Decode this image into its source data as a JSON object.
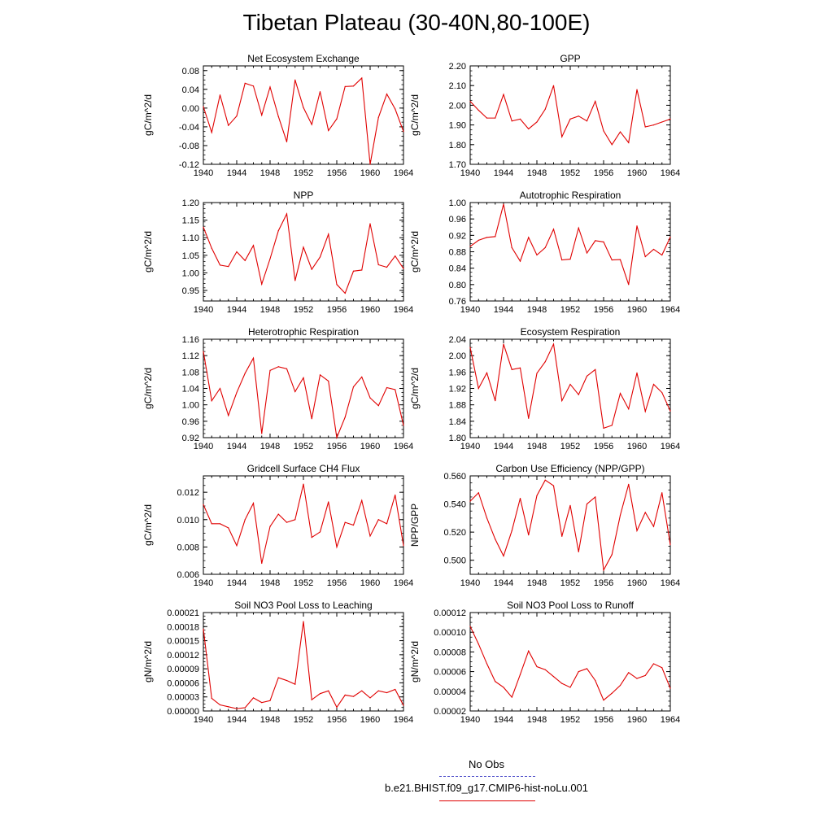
{
  "title": "Tibetan Plateau (30-40N,80-100E)",
  "legend": {
    "obs_label": "No Obs",
    "obs_color": "#5555cc",
    "model_label": "b.e21.BHIST.f09_g17.CMIP6-hist-noLu.001",
    "model_color": "#e00000"
  },
  "chart_data": [
    {
      "type": "line",
      "title": "Net Ecosystem Exchange",
      "ylabel": "gC/m^2/d",
      "xlim": [
        1940,
        1964
      ],
      "xticks": [
        "1940",
        "1944",
        "1948",
        "1952",
        "1956",
        "1960",
        "1964"
      ],
      "ylim": [
        -0.12,
        0.09
      ],
      "yticks": [
        "-0.12",
        "-0.08",
        "-0.04",
        "0.00",
        "0.04",
        "0.08"
      ],
      "series": [
        {
          "x": [
            1940,
            1941,
            1942,
            1943,
            1944,
            1945,
            1946,
            1947,
            1948,
            1949,
            1950,
            1951,
            1952,
            1953,
            1954,
            1955,
            1956,
            1957,
            1958,
            1959,
            1960,
            1961,
            1962,
            1963,
            1964
          ],
          "values": [
            0.003,
            -0.052,
            0.028,
            -0.037,
            -0.017,
            0.053,
            0.047,
            -0.015,
            0.045,
            -0.018,
            -0.072,
            0.06,
            0.001,
            -0.035,
            0.035,
            -0.048,
            -0.023,
            0.046,
            0.047,
            0.064,
            -0.12,
            -0.02,
            0.03,
            -0.002,
            -0.05
          ]
        }
      ]
    },
    {
      "type": "line",
      "title": "GPP",
      "ylabel": "gC/m^2/d",
      "xlim": [
        1940,
        1964
      ],
      "xticks": [
        "1940",
        "1944",
        "1948",
        "1952",
        "1956",
        "1960",
        "1964"
      ],
      "ylim": [
        1.7,
        2.2
      ],
      "yticks": [
        "1.70",
        "1.80",
        "1.90",
        "2.00",
        "2.10",
        "2.20"
      ],
      "series": [
        {
          "x": [
            1940,
            1941,
            1942,
            1943,
            1944,
            1945,
            1946,
            1947,
            1948,
            1949,
            1950,
            1951,
            1952,
            1953,
            1954,
            1955,
            1956,
            1957,
            1958,
            1959,
            1960,
            1961,
            1962,
            1963,
            1964
          ],
          "values": [
            2.02,
            1.975,
            1.935,
            1.935,
            2.055,
            1.92,
            1.93,
            1.88,
            1.915,
            1.98,
            2.1,
            1.84,
            1.93,
            1.945,
            1.92,
            2.02,
            1.87,
            1.8,
            1.865,
            1.81,
            2.08,
            1.89,
            1.9,
            1.915,
            1.93
          ]
        }
      ]
    },
    {
      "type": "line",
      "title": "NPP",
      "ylabel": "gC/m^2/d",
      "xlim": [
        1940,
        1964
      ],
      "xticks": [
        "1940",
        "1944",
        "1948",
        "1952",
        "1956",
        "1960",
        "1964"
      ],
      "ylim": [
        0.92,
        1.2
      ],
      "yticks": [
        "0.95",
        "1.00",
        "1.05",
        "1.10",
        "1.15",
        "1.20"
      ],
      "series": [
        {
          "x": [
            1940,
            1941,
            1942,
            1943,
            1944,
            1945,
            1946,
            1947,
            1948,
            1949,
            1950,
            1951,
            1952,
            1953,
            1954,
            1955,
            1956,
            1957,
            1958,
            1959,
            1960,
            1961,
            1962,
            1963,
            1964
          ],
          "values": [
            1.13,
            1.07,
            1.022,
            1.018,
            1.06,
            1.035,
            1.078,
            0.968,
            1.04,
            1.12,
            1.168,
            0.978,
            1.073,
            1.01,
            1.045,
            1.11,
            0.967,
            0.942,
            1.005,
            1.008,
            1.14,
            1.023,
            1.016,
            1.048,
            1.012
          ]
        }
      ]
    },
    {
      "type": "line",
      "title": "Autotrophic Respiration",
      "ylabel": "gC/m^2/d",
      "xlim": [
        1940,
        1964
      ],
      "xticks": [
        "1940",
        "1944",
        "1948",
        "1952",
        "1956",
        "1960",
        "1964"
      ],
      "ylim": [
        0.76,
        1.0
      ],
      "yticks": [
        "0.76",
        "0.80",
        "0.84",
        "0.88",
        "0.92",
        "0.96",
        "1.00"
      ],
      "series": [
        {
          "x": [
            1940,
            1941,
            1942,
            1943,
            1944,
            1945,
            1946,
            1947,
            1948,
            1949,
            1950,
            1951,
            1952,
            1953,
            1954,
            1955,
            1956,
            1957,
            1958,
            1959,
            1960,
            1961,
            1962,
            1963,
            1964
          ],
          "values": [
            0.893,
            0.908,
            0.915,
            0.917,
            0.996,
            0.89,
            0.857,
            0.915,
            0.872,
            0.89,
            0.935,
            0.86,
            0.862,
            0.938,
            0.877,
            0.907,
            0.904,
            0.86,
            0.861,
            0.8,
            0.943,
            0.868,
            0.886,
            0.872,
            0.916
          ]
        }
      ]
    },
    {
      "type": "line",
      "title": "Heterotrophic Respiration",
      "ylabel": "gC/m^2/d",
      "xlim": [
        1940,
        1964
      ],
      "xticks": [
        "1940",
        "1944",
        "1948",
        "1952",
        "1956",
        "1960",
        "1964"
      ],
      "ylim": [
        0.92,
        1.16
      ],
      "yticks": [
        "0.92",
        "0.96",
        "1.00",
        "1.04",
        "1.08",
        "1.12",
        "1.16"
      ],
      "series": [
        {
          "x": [
            1940,
            1941,
            1942,
            1943,
            1944,
            1945,
            1946,
            1947,
            1948,
            1949,
            1950,
            1951,
            1952,
            1953,
            1954,
            1955,
            1956,
            1957,
            1958,
            1959,
            1960,
            1961,
            1962,
            1963,
            1964
          ],
          "values": [
            1.13,
            1.01,
            1.04,
            0.974,
            1.03,
            1.077,
            1.114,
            0.93,
            1.084,
            1.093,
            1.088,
            1.032,
            1.066,
            0.966,
            1.073,
            1.058,
            0.92,
            0.97,
            1.044,
            1.068,
            1.017,
            0.998,
            1.042,
            1.037,
            0.95
          ]
        }
      ]
    },
    {
      "type": "line",
      "title": "Ecosystem Respiration",
      "ylabel": "gC/m^2/d",
      "xlim": [
        1940,
        1964
      ],
      "xticks": [
        "1940",
        "1944",
        "1948",
        "1952",
        "1956",
        "1960",
        "1964"
      ],
      "ylim": [
        1.8,
        2.04
      ],
      "yticks": [
        "1.80",
        "1.84",
        "1.88",
        "1.92",
        "1.96",
        "2.00",
        "2.04"
      ],
      "series": [
        {
          "x": [
            1940,
            1941,
            1942,
            1943,
            1944,
            1945,
            1946,
            1947,
            1948,
            1949,
            1950,
            1951,
            1952,
            1953,
            1954,
            1955,
            1956,
            1957,
            1958,
            1959,
            1960,
            1961,
            1962,
            1963,
            1964
          ],
          "values": [
            2.02,
            1.92,
            1.958,
            1.89,
            2.028,
            1.966,
            1.97,
            1.847,
            1.957,
            1.985,
            2.028,
            1.89,
            1.93,
            1.905,
            1.95,
            1.966,
            1.823,
            1.83,
            1.908,
            1.87,
            1.958,
            1.864,
            1.93,
            1.91,
            1.865
          ]
        }
      ]
    },
    {
      "type": "line",
      "title": "Gridcell Surface CH4 Flux",
      "ylabel": "gC/m^2/d",
      "xlim": [
        1940,
        1964
      ],
      "xticks": [
        "1940",
        "1944",
        "1948",
        "1952",
        "1956",
        "1960",
        "1964"
      ],
      "ylim": [
        0.006,
        0.0132
      ],
      "yticks": [
        "0.006",
        "0.008",
        "0.010",
        "0.012"
      ],
      "series": [
        {
          "x": [
            1940,
            1941,
            1942,
            1943,
            1944,
            1945,
            1946,
            1947,
            1948,
            1949,
            1950,
            1951,
            1952,
            1953,
            1954,
            1955,
            1956,
            1957,
            1958,
            1959,
            1960,
            1961,
            1962,
            1963,
            1964
          ],
          "values": [
            0.0111,
            0.0097,
            0.0097,
            0.0094,
            0.0081,
            0.01,
            0.0112,
            0.0068,
            0.0095,
            0.0104,
            0.0098,
            0.01,
            0.0126,
            0.0087,
            0.0091,
            0.0113,
            0.008,
            0.0098,
            0.0096,
            0.0114,
            0.0088,
            0.01,
            0.0097,
            0.0118,
            0.0081
          ]
        }
      ]
    },
    {
      "type": "line",
      "title": "Carbon Use Efficiency (NPP/GPP)",
      "ylabel": "NPP/GPP",
      "xlim": [
        1940,
        1964
      ],
      "xticks": [
        "1940",
        "1944",
        "1948",
        "1952",
        "1956",
        "1960",
        "1964"
      ],
      "ylim": [
        0.49,
        0.56
      ],
      "yticks": [
        "0.500",
        "0.520",
        "0.540",
        "0.560"
      ],
      "series": [
        {
          "x": [
            1940,
            1941,
            1942,
            1943,
            1944,
            1945,
            1946,
            1947,
            1948,
            1949,
            1950,
            1951,
            1952,
            1953,
            1954,
            1955,
            1956,
            1957,
            1958,
            1959,
            1960,
            1961,
            1962,
            1963,
            1964
          ],
          "values": [
            0.542,
            0.548,
            0.53,
            0.515,
            0.503,
            0.521,
            0.544,
            0.518,
            0.546,
            0.557,
            0.553,
            0.517,
            0.539,
            0.506,
            0.54,
            0.545,
            0.493,
            0.504,
            0.532,
            0.554,
            0.521,
            0.534,
            0.524,
            0.548,
            0.511
          ]
        }
      ]
    },
    {
      "type": "line",
      "title": "Soil NO3 Pool Loss to Leaching",
      "ylabel": "gN/m^2/d",
      "xlim": [
        1940,
        1964
      ],
      "xticks": [
        "1940",
        "1944",
        "1948",
        "1952",
        "1956",
        "1960",
        "1964"
      ],
      "ylim": [
        0.0,
        0.00021
      ],
      "yticks": [
        "0.00000",
        "0.00003",
        "0.00006",
        "0.00009",
        "0.00012",
        "0.00015",
        "0.00018",
        "0.00021"
      ],
      "series": [
        {
          "x": [
            1940,
            1941,
            1942,
            1943,
            1944,
            1945,
            1946,
            1947,
            1948,
            1949,
            1950,
            1951,
            1952,
            1953,
            1954,
            1955,
            1956,
            1957,
            1958,
            1959,
            1960,
            1961,
            1962,
            1963,
            1964
          ],
          "values": [
            0.000175,
            2.7e-05,
            1.3e-05,
            9e-06,
            5e-06,
            7e-06,
            2.8e-05,
            1.8e-05,
            2.2e-05,
            7.1e-05,
            6.5e-05,
            5.7e-05,
            0.000191,
            2.4e-05,
            3.7e-05,
            4.3e-05,
            8e-06,
            3.4e-05,
            3.1e-05,
            4.3e-05,
            2.8e-05,
            4.3e-05,
            3.9e-05,
            4.6e-05,
            1.2e-05
          ]
        }
      ]
    },
    {
      "type": "line",
      "title": "Soil NO3 Pool Loss to Runoff",
      "ylabel": "gN/m^2/d",
      "xlim": [
        1940,
        1964
      ],
      "xticks": [
        "1940",
        "1944",
        "1948",
        "1952",
        "1956",
        "1960",
        "1964"
      ],
      "ylim": [
        2e-05,
        0.00012
      ],
      "yticks": [
        "0.00002",
        "0.00004",
        "0.00006",
        "0.00008",
        "0.00010",
        "0.00012"
      ],
      "series": [
        {
          "x": [
            1940,
            1941,
            1942,
            1943,
            1944,
            1945,
            1946,
            1947,
            1948,
            1949,
            1950,
            1951,
            1952,
            1953,
            1954,
            1955,
            1956,
            1957,
            1958,
            1959,
            1960,
            1961,
            1962,
            1963,
            1964
          ],
          "values": [
            0.000106,
            8.8e-05,
            6.8e-05,
            5e-05,
            4.4e-05,
            3.4e-05,
            5.7e-05,
            8.1e-05,
            6.5e-05,
            6.2e-05,
            5.5e-05,
            4.8e-05,
            4.4e-05,
            6e-05,
            6.3e-05,
            5.1e-05,
            3.1e-05,
            3.8e-05,
            4.6e-05,
            5.9e-05,
            5.3e-05,
            5.6e-05,
            6.8e-05,
            6.4e-05,
            4.3e-05
          ]
        }
      ]
    }
  ]
}
